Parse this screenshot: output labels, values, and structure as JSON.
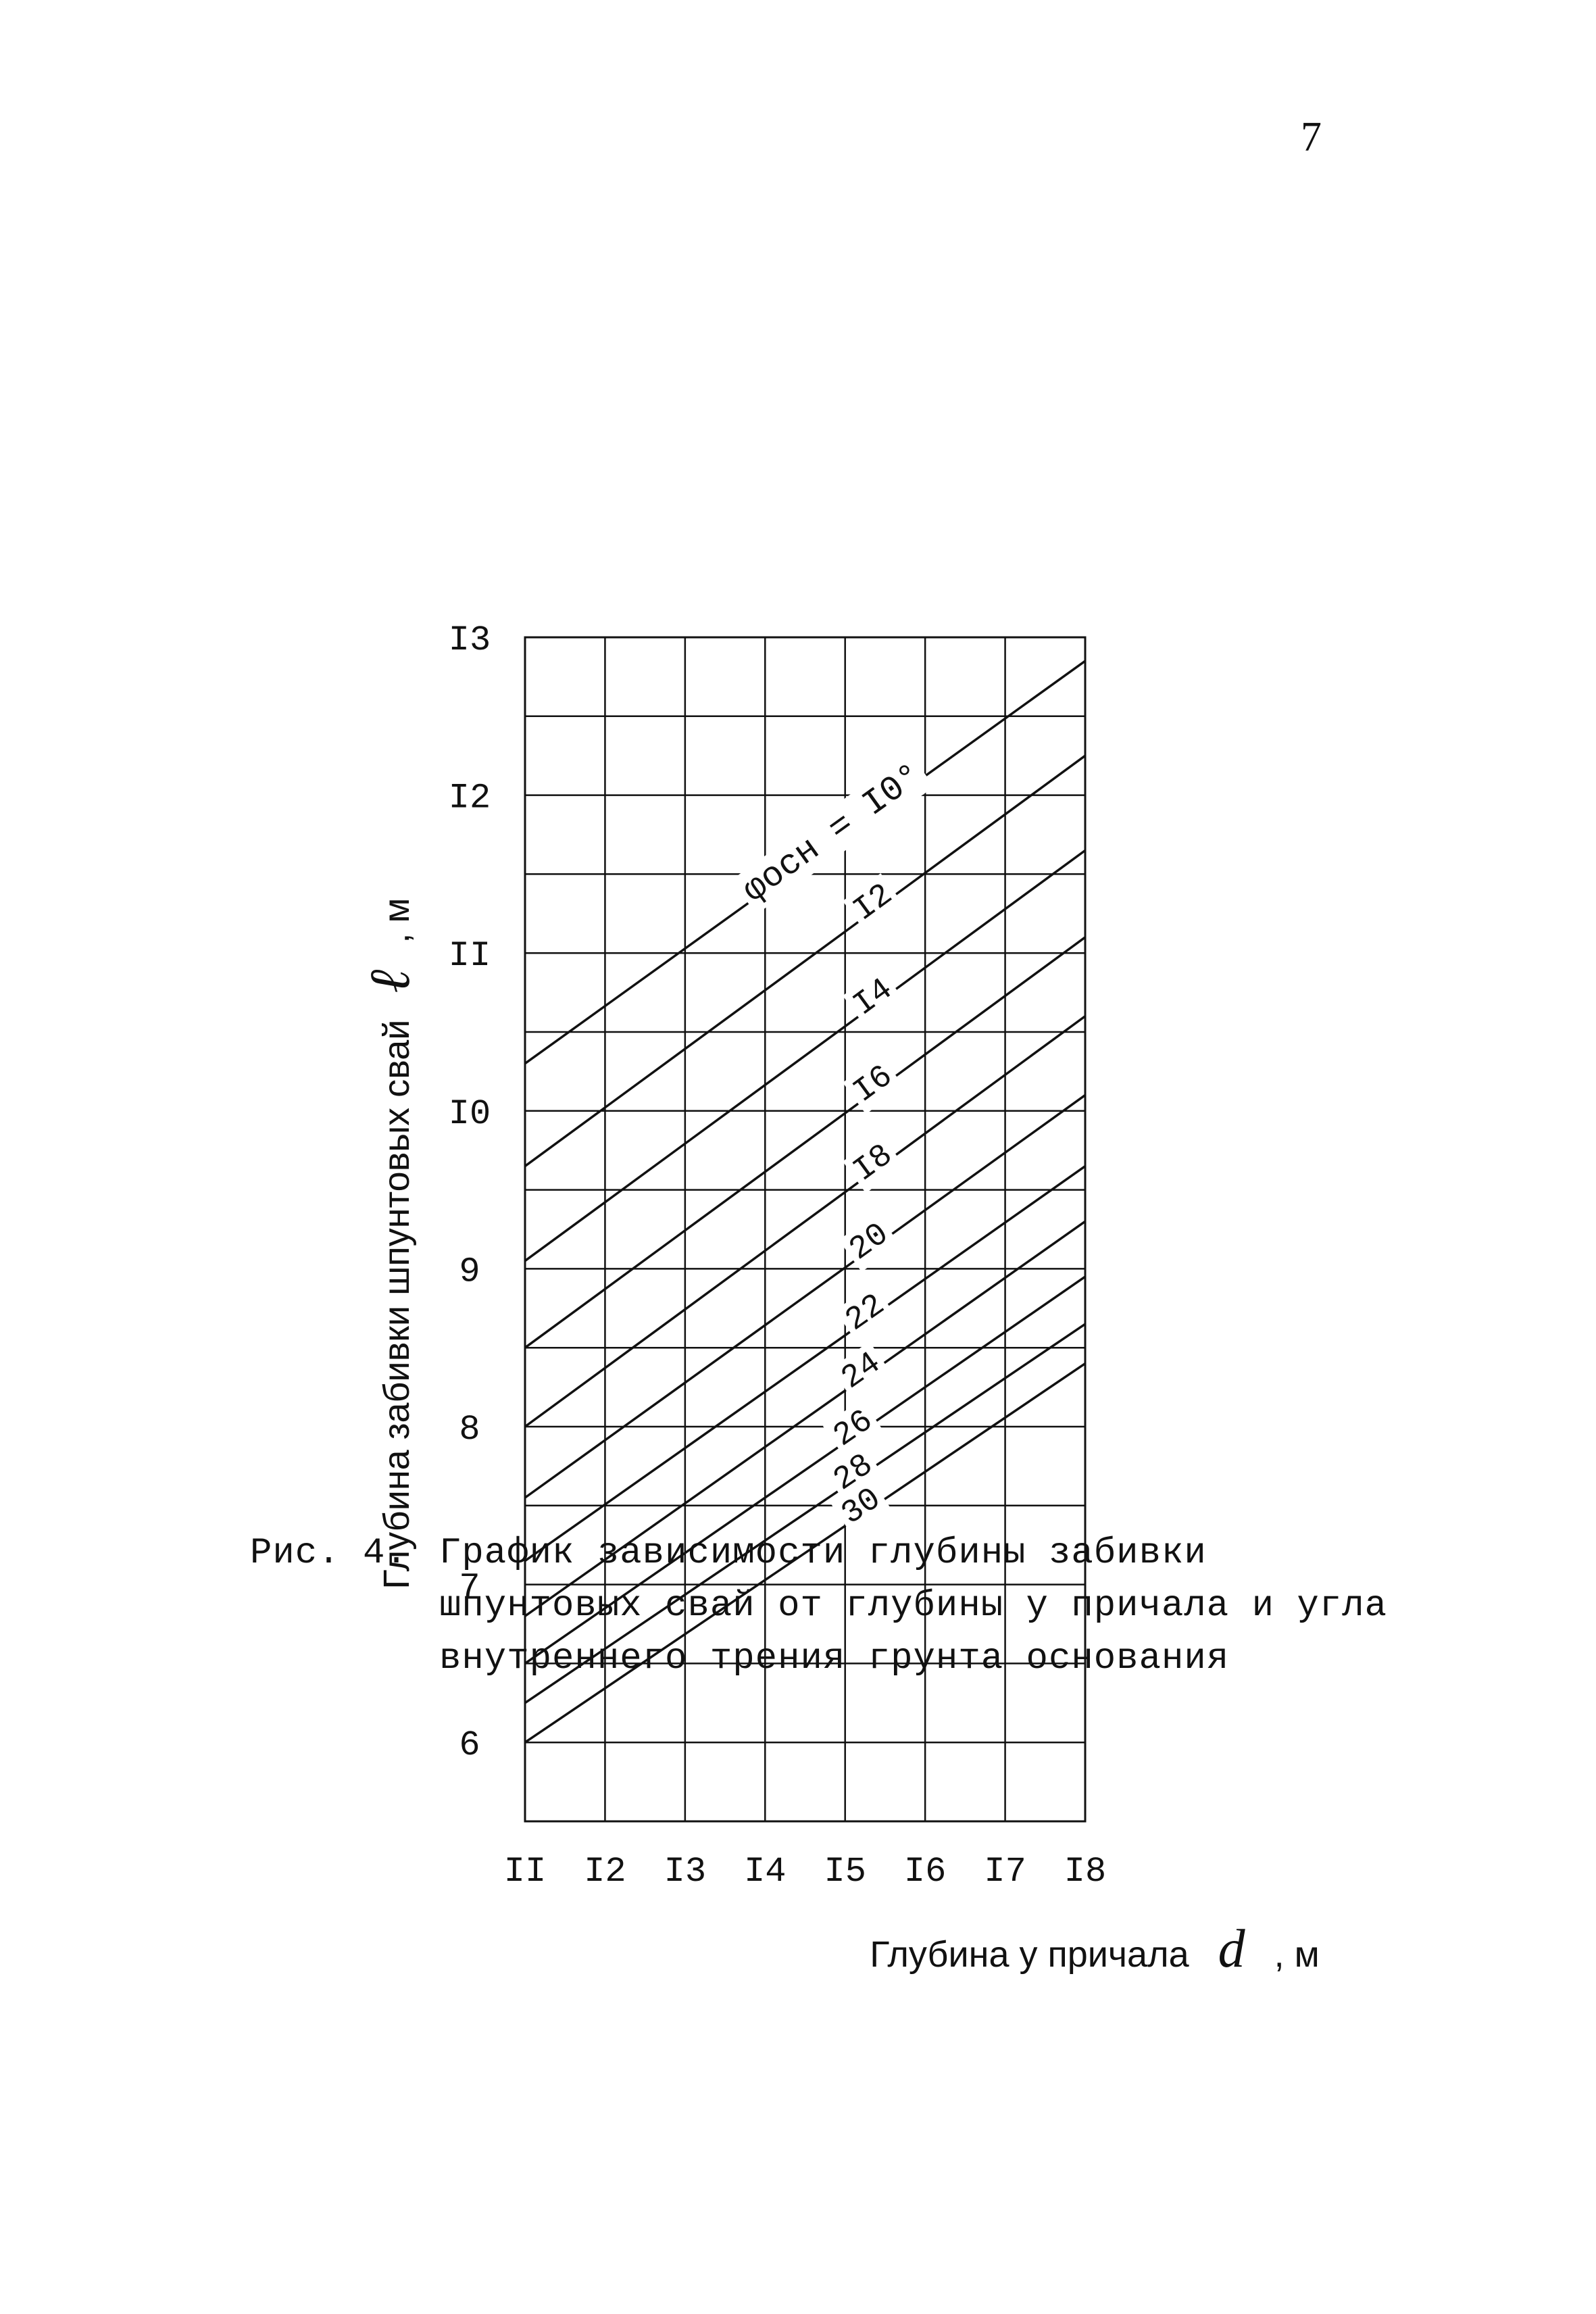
{
  "page": {
    "number": "7"
  },
  "chart_data": {
    "type": "line",
    "ylabel": "Глубина забивки шпунтовых свай",
    "ylabel_symbol": "ℓ",
    "ylabel_unit": ", м",
    "xlabel": "Глубина у причала",
    "xlabel_symbol": "d",
    "xlabel_unit": ", м",
    "xlim": [
      11,
      18
    ],
    "ylim": [
      5.5,
      13
    ],
    "x_ticks": [
      "II",
      "I2",
      "I3",
      "I4",
      "I5",
      "I6",
      "I7",
      "I8"
    ],
    "x_tick_values": [
      11,
      12,
      13,
      14,
      15,
      16,
      17,
      18
    ],
    "y_ticks": [
      "6",
      "7",
      "8",
      "9",
      "I0",
      "II",
      "I2",
      "I3"
    ],
    "y_tick_values": [
      6,
      7,
      8,
      9,
      10,
      11,
      12,
      13
    ],
    "grid": true,
    "series": [
      {
        "name": "φосн = I0°",
        "x": [
          11,
          18
        ],
        "y": [
          10.3,
          12.85
        ]
      },
      {
        "name": "I2",
        "x": [
          11,
          18
        ],
        "y": [
          9.65,
          12.25
        ]
      },
      {
        "name": "I4",
        "x": [
          11,
          18
        ],
        "y": [
          9.05,
          11.65
        ]
      },
      {
        "name": "I6",
        "x": [
          11,
          18
        ],
        "y": [
          8.5,
          11.1
        ]
      },
      {
        "name": "I8",
        "x": [
          11,
          18
        ],
        "y": [
          8.0,
          10.6
        ]
      },
      {
        "name": "20",
        "x": [
          11,
          18
        ],
        "y": [
          7.55,
          10.1
        ]
      },
      {
        "name": "22",
        "x": [
          11,
          18
        ],
        "y": [
          7.15,
          9.65
        ]
      },
      {
        "name": "24",
        "x": [
          11,
          18
        ],
        "y": [
          6.8,
          9.3
        ]
      },
      {
        "name": "26",
        "x": [
          11,
          18
        ],
        "y": [
          6.5,
          8.95
        ]
      },
      {
        "name": "28",
        "x": [
          11,
          18
        ],
        "y": [
          6.25,
          8.65
        ]
      },
      {
        "name": "30",
        "x": [
          11,
          18
        ],
        "y": [
          6.0,
          8.4
        ]
      }
    ],
    "series_labels": [
      "φосн = I0°",
      "I2",
      "I4",
      "I6",
      "I8",
      "20",
      "22",
      "24",
      "26",
      "28",
      "30"
    ],
    "label_x": [
      14.9,
      15.4,
      15.4,
      15.4,
      15.4,
      15.35,
      15.3,
      15.25,
      15.15,
      15.15,
      15.25
    ]
  },
  "caption": {
    "label": "Рис.  4.",
    "text": "График зависимости глубины забивки шпунтовых свай от глубины у причала и угла внутреннего трения грунта основания"
  }
}
